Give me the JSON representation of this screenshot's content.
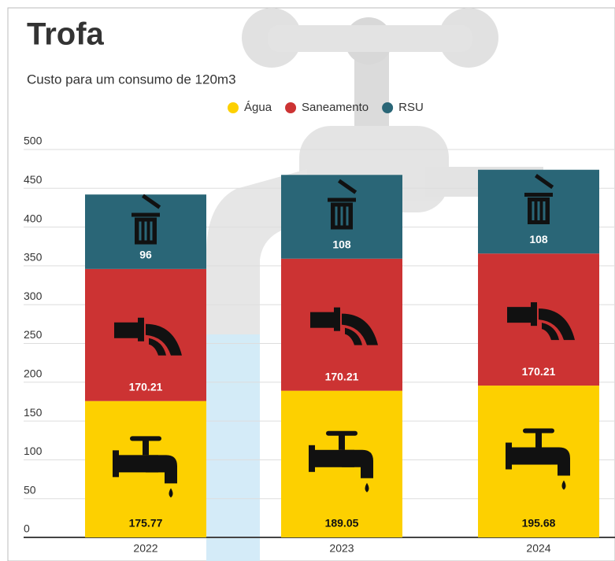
{
  "chart_data": {
    "type": "stacked-bar",
    "title": "Trofa",
    "subtitle": "Custo para um consumo de 120m3",
    "categories": [
      "2022",
      "2023",
      "2024"
    ],
    "series": [
      {
        "name": "Água",
        "color": "#fdd000",
        "values": [
          175.77,
          189.05,
          195.68
        ]
      },
      {
        "name": "Saneamento",
        "color": "#cc3333",
        "values": [
          170.21,
          170.21,
          170.21
        ]
      },
      {
        "name": "RSU",
        "color": "#2a6677",
        "values": [
          96,
          108,
          108
        ]
      }
    ],
    "ylim": [
      0,
      500
    ],
    "yticks": [
      0,
      50,
      100,
      150,
      200,
      250,
      300,
      350,
      400,
      450,
      500
    ],
    "grid": true,
    "legend": "top"
  }
}
